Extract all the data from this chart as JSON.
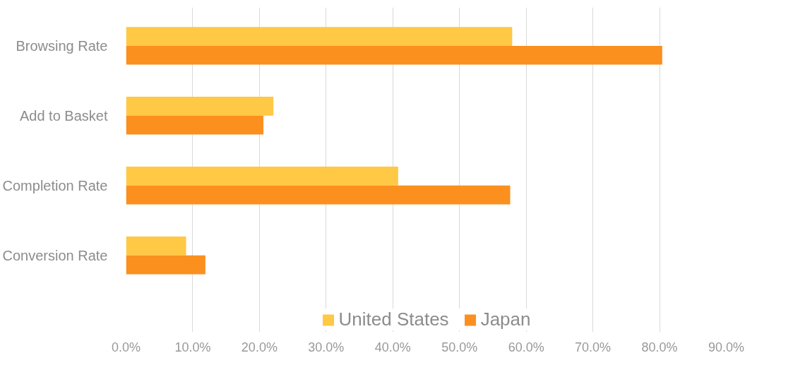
{
  "chart_data": {
    "type": "bar",
    "orientation": "horizontal",
    "categories": [
      "Browsing Rate",
      "Add to Basket",
      "Completion Rate",
      "Conversion Rate"
    ],
    "series": [
      {
        "name": "United States",
        "color": "#ffc845",
        "values": [
          57.9,
          22.1,
          40.8,
          9.0
        ]
      },
      {
        "name": "Japan",
        "color": "#fb901f",
        "values": [
          80.4,
          20.6,
          57.6,
          11.9
        ]
      }
    ],
    "xlim": [
      0,
      90
    ],
    "xticks": [
      {
        "value": 0,
        "label": "0.0%"
      },
      {
        "value": 10,
        "label": "10.0%"
      },
      {
        "value": 20,
        "label": "20.0%"
      },
      {
        "value": 30,
        "label": "30.0%"
      },
      {
        "value": 40,
        "label": "40.0%"
      },
      {
        "value": 50,
        "label": "50.0%"
      },
      {
        "value": 60,
        "label": "60.0%"
      },
      {
        "value": 70,
        "label": "70.0%"
      },
      {
        "value": 80,
        "label": "80.0%"
      },
      {
        "value": 90,
        "label": "90.0%"
      }
    ],
    "grid": "x",
    "legend": "bottom"
  }
}
